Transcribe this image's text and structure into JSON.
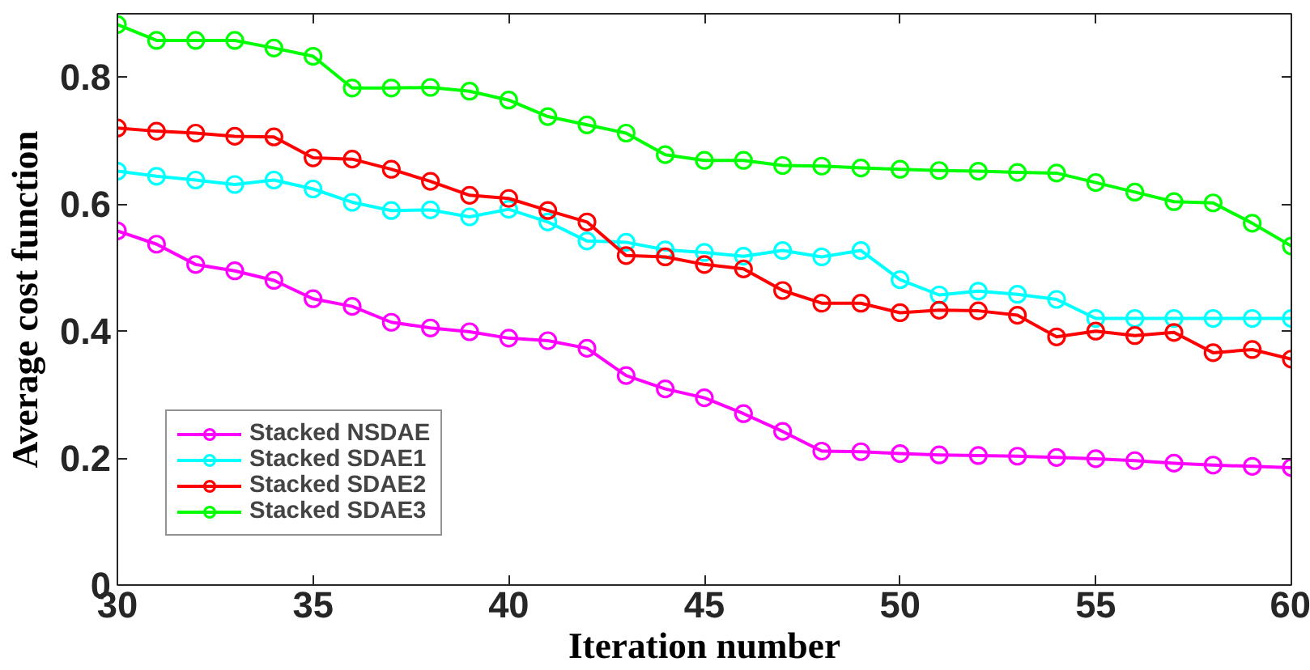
{
  "chart_data": {
    "type": "line",
    "xlabel": "Iteration number",
    "ylabel": "Average cost function",
    "x": [
      30,
      31,
      32,
      33,
      34,
      35,
      36,
      37,
      38,
      39,
      40,
      41,
      42,
      43,
      44,
      45,
      46,
      47,
      48,
      49,
      50,
      51,
      52,
      53,
      54,
      55,
      56,
      57,
      58,
      59,
      60
    ],
    "xlim": [
      30,
      60
    ],
    "xticks": [
      30,
      35,
      40,
      45,
      50,
      55,
      60
    ],
    "ylim": [
      0,
      0.9
    ],
    "yticks": [
      0,
      0.2,
      0.4,
      0.6,
      0.8
    ],
    "marker": "circle",
    "line_style": "solid",
    "grid": false,
    "legend": "bottom left",
    "series": [
      {
        "name": "Stacked NSDAE",
        "color": "#ff00ff",
        "values": [
          0.558,
          0.537,
          0.505,
          0.495,
          0.48,
          0.451,
          0.439,
          0.414,
          0.405,
          0.399,
          0.389,
          0.385,
          0.373,
          0.33,
          0.309,
          0.295,
          0.27,
          0.242,
          0.211,
          0.21,
          0.207,
          0.205,
          0.204,
          0.203,
          0.201,
          0.199,
          0.196,
          0.192,
          0.189,
          0.187,
          0.185
        ]
      },
      {
        "name": "Stacked SDAE1",
        "color": "#00ffff",
        "values": [
          0.652,
          0.644,
          0.638,
          0.631,
          0.638,
          0.624,
          0.603,
          0.59,
          0.591,
          0.58,
          0.592,
          0.572,
          0.542,
          0.54,
          0.528,
          0.524,
          0.518,
          0.527,
          0.517,
          0.527,
          0.481,
          0.457,
          0.463,
          0.458,
          0.45,
          0.42,
          0.42,
          0.42,
          0.42,
          0.42,
          0.42
        ]
      },
      {
        "name": "Stacked SDAE2",
        "color": "#ff0000",
        "values": [
          0.72,
          0.715,
          0.712,
          0.707,
          0.706,
          0.673,
          0.671,
          0.655,
          0.636,
          0.614,
          0.609,
          0.59,
          0.572,
          0.519,
          0.517,
          0.505,
          0.498,
          0.464,
          0.444,
          0.444,
          0.429,
          0.433,
          0.432,
          0.425,
          0.391,
          0.4,
          0.393,
          0.398,
          0.366,
          0.371,
          0.356
        ]
      },
      {
        "name": "Stacked SDAE3",
        "color": "#00ff00",
        "values": [
          0.883,
          0.858,
          0.858,
          0.858,
          0.846,
          0.833,
          0.783,
          0.783,
          0.784,
          0.778,
          0.764,
          0.738,
          0.725,
          0.712,
          0.678,
          0.669,
          0.669,
          0.661,
          0.66,
          0.657,
          0.655,
          0.653,
          0.652,
          0.65,
          0.649,
          0.634,
          0.619,
          0.604,
          0.602,
          0.57,
          0.534
        ]
      }
    ]
  }
}
